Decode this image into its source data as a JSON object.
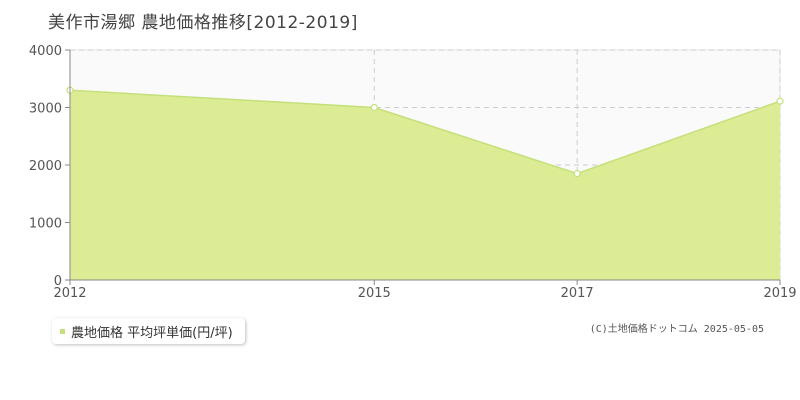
{
  "title": "美作市湯郷 農地価格推移[2012-2019]",
  "credit": "(C)土地価格ドットコム 2025-05-05",
  "colors": {
    "fill": "#dcec94",
    "line": "#c4e07a",
    "plot_bg": "#fafafa",
    "grid": "#cccccc",
    "axis": "#888888",
    "tick_text": "#555555",
    "marker_fill": "#ffffff"
  },
  "chart_data": {
    "type": "area",
    "title": "美作市湯郷 農地価格推移[2012-2019]",
    "xlabel": "",
    "ylabel": "",
    "x_ticks": [
      "2012",
      "2015",
      "2017",
      "2019"
    ],
    "y_ticks": [
      "0",
      "1000",
      "2000",
      "3000",
      "4000"
    ],
    "xlim": [
      2012,
      2019
    ],
    "ylim": [
      0,
      4000
    ],
    "grid": true,
    "legend_position": "bottom-left",
    "series": [
      {
        "name": "農地価格 平均坪単価(円/坪)",
        "x": [
          2012,
          2015,
          2017,
          2019
        ],
        "values": [
          3300,
          3000,
          1850,
          3110
        ]
      }
    ]
  }
}
